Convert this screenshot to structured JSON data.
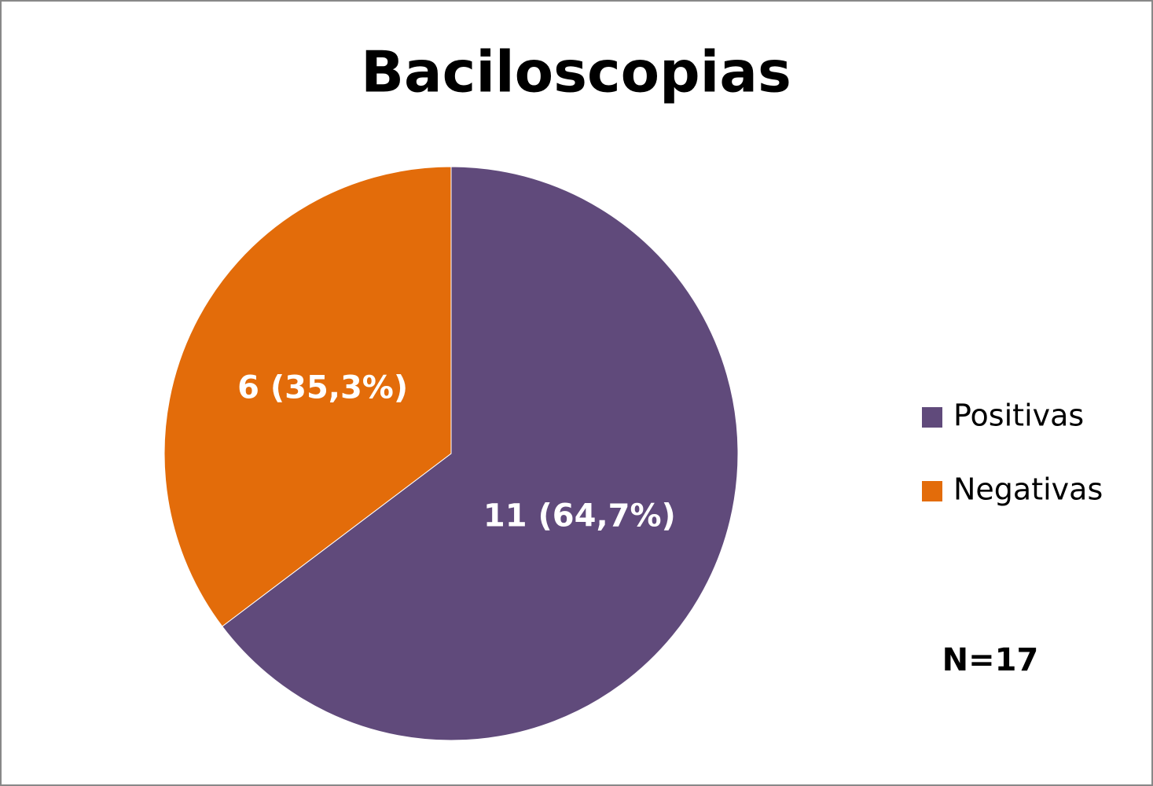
{
  "chart_data": {
    "type": "pie",
    "title": "Baciloscopias",
    "categories": [
      "Positivas",
      "Negativas"
    ],
    "values": [
      11,
      6
    ],
    "value_labels": [
      "11 (64,7%)",
      "6 (35,3%)"
    ],
    "colors": [
      "#604a7b",
      "#e36c0a"
    ],
    "annotation": "N=17",
    "legend": "right"
  }
}
